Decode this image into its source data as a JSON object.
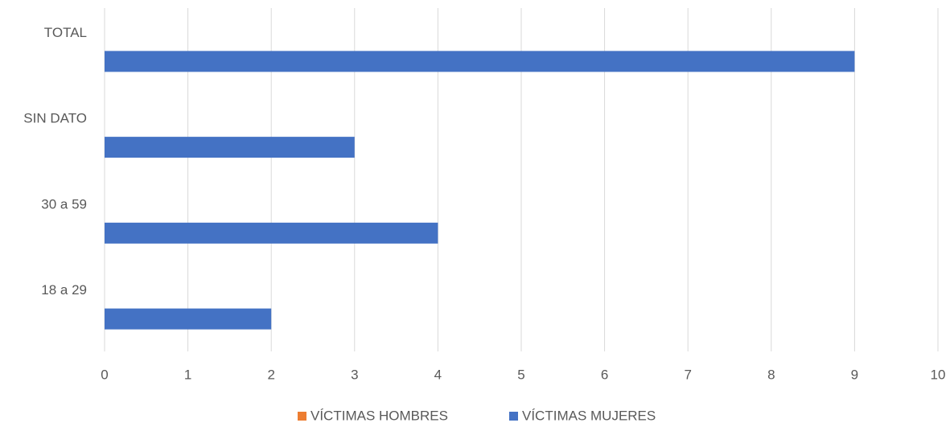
{
  "chart_data": {
    "type": "hbar",
    "categories": [
      "18 a 29",
      "30 a 59",
      "SIN DATO",
      "TOTAL"
    ],
    "series": [
      {
        "name": "VÍCTIMAS HOMBRES",
        "color": "#ed7d31",
        "values": [
          0,
          0,
          0,
          0
        ]
      },
      {
        "name": "VÍCTIMAS MUJERES",
        "color": "#4472c4",
        "values": [
          2,
          4,
          3,
          9
        ]
      }
    ],
    "xlim": [
      0,
      10
    ],
    "xticks": [
      0,
      1,
      2,
      3,
      4,
      5,
      6,
      7,
      8,
      9,
      10
    ],
    "grid": true,
    "legend": "bottom"
  }
}
